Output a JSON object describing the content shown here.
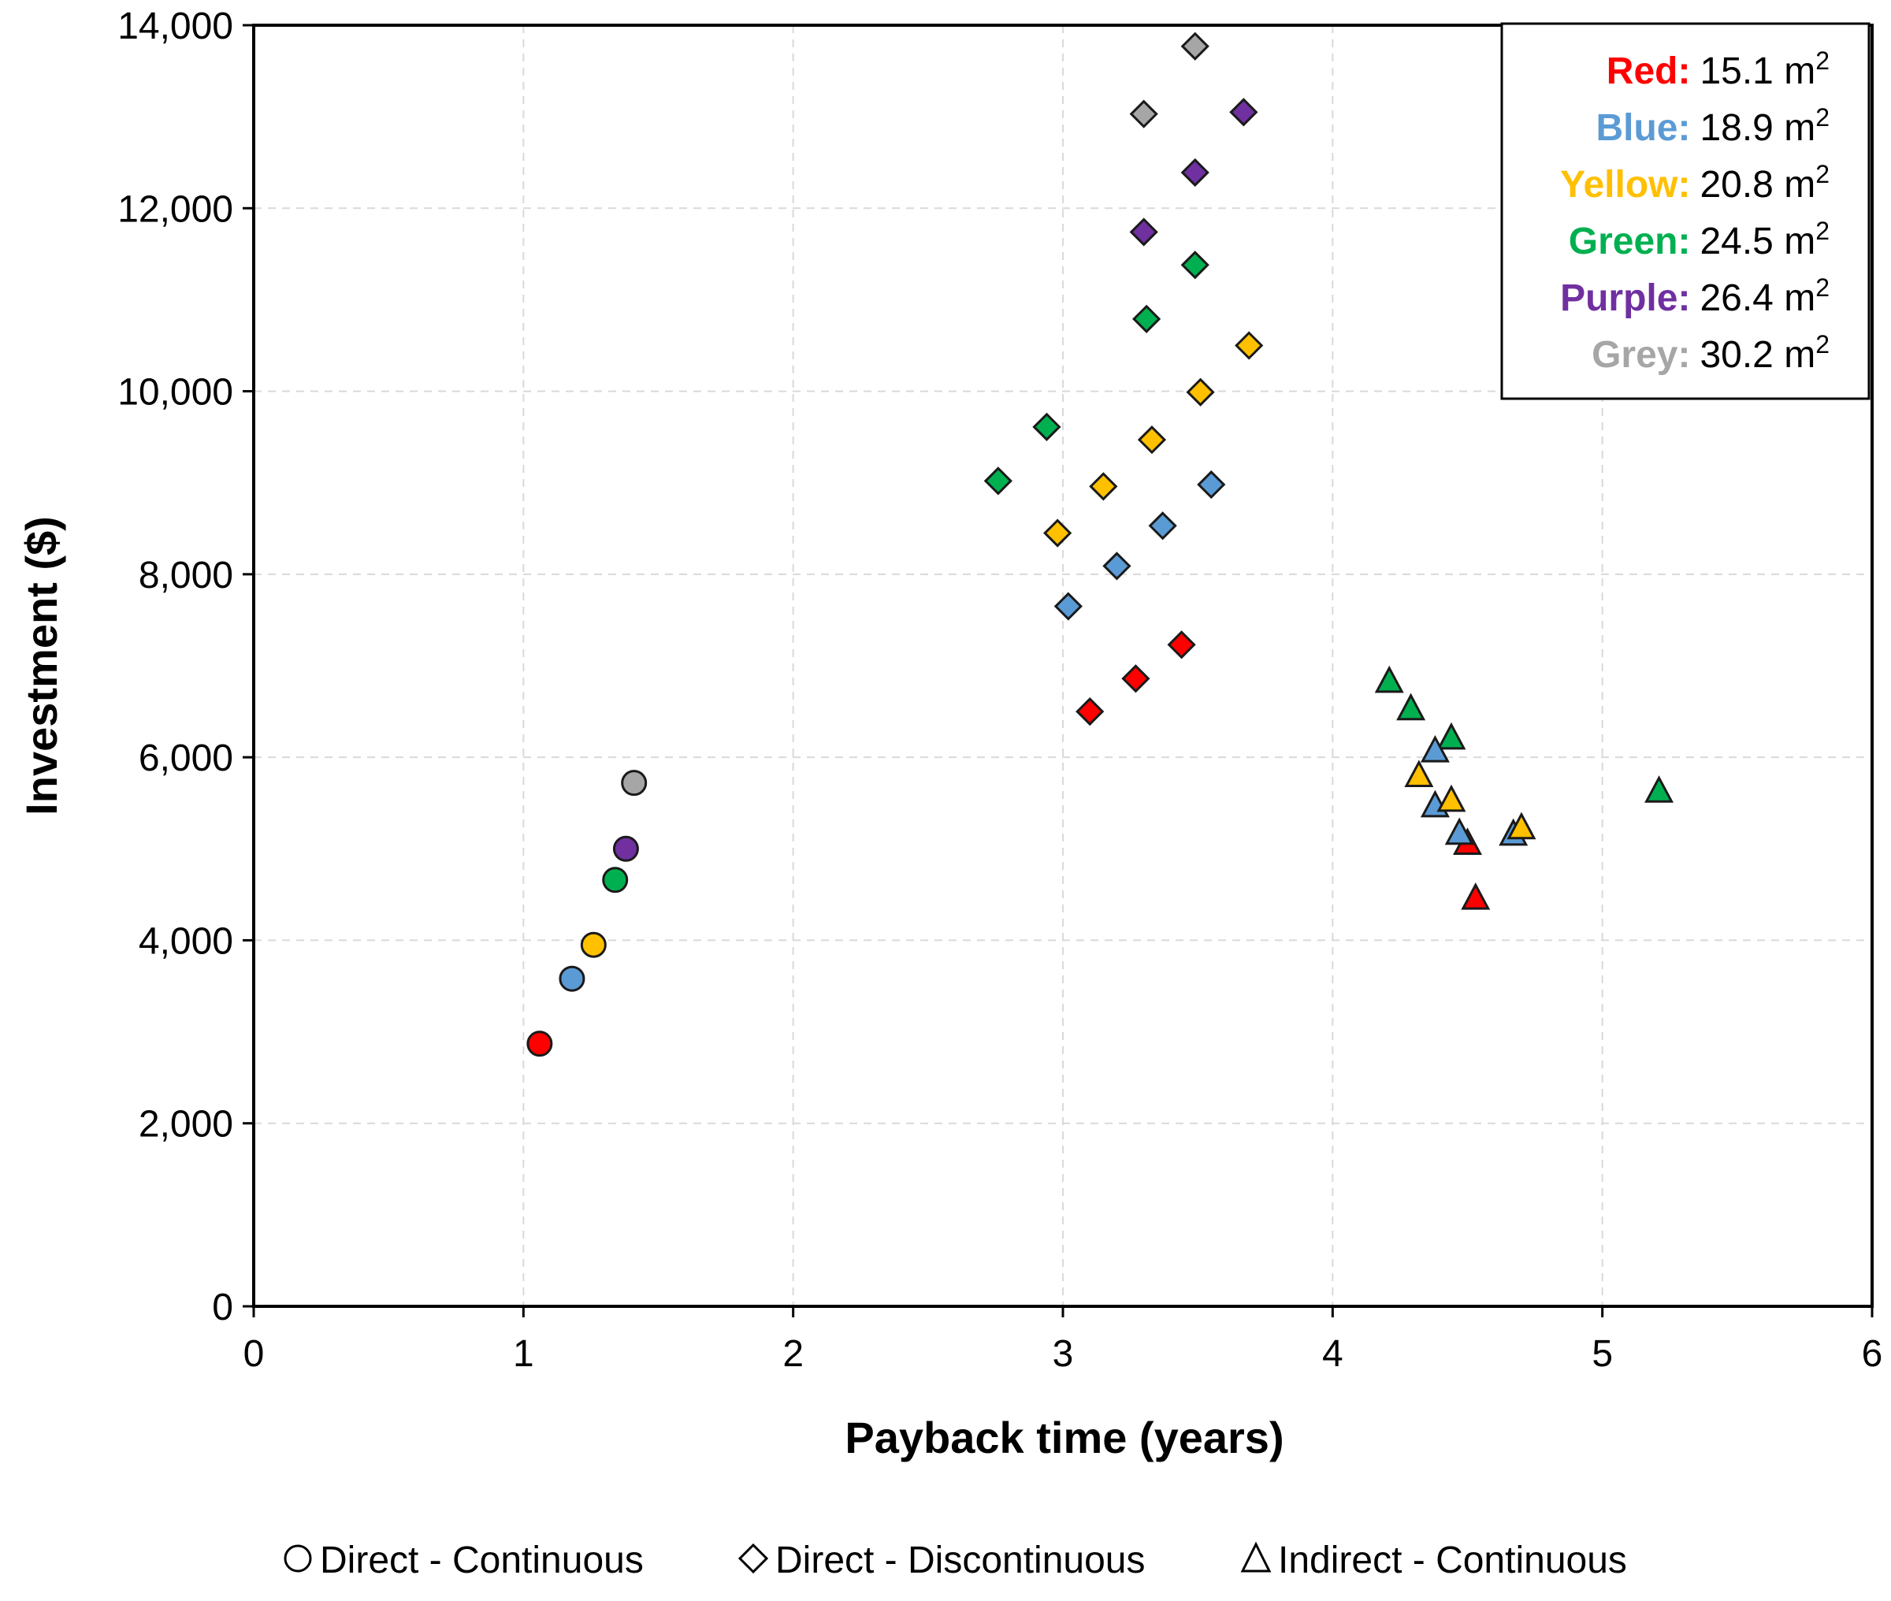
{
  "chart_data": {
    "type": "scatter",
    "title": "",
    "xlabel": "Payback time (years)",
    "ylabel": "Investment ($)",
    "xlim": [
      0,
      6
    ],
    "ylim": [
      0,
      14000
    ],
    "x_ticks": [
      "0",
      "1",
      "2",
      "3",
      "4",
      "5",
      "6"
    ],
    "y_ticks": [
      "0",
      "2,000",
      "4,000",
      "6,000",
      "8,000",
      "10,000",
      "12,000",
      "14,000"
    ],
    "grid": true,
    "colors": {
      "red": "#ff0000",
      "blue": "#5b9bd5",
      "yellow": "#ffc000",
      "green": "#00b050",
      "purple": "#7030a0",
      "grey": "#a6a6a6"
    },
    "color_legend": {
      "position": "top-right",
      "entries": [
        {
          "key": "red",
          "name": "Red:",
          "value": "15.1",
          "unit": "m",
          "sup": "2"
        },
        {
          "key": "blue",
          "name": "Blue:",
          "value": "18.9",
          "unit": "m",
          "sup": "2"
        },
        {
          "key": "yellow",
          "name": "Yellow:",
          "value": "20.8",
          "unit": "m",
          "sup": "2"
        },
        {
          "key": "green",
          "name": "Green:",
          "value": "24.5",
          "unit": "m",
          "sup": "2"
        },
        {
          "key": "purple",
          "name": "Purple:",
          "value": "26.4",
          "unit": "m",
          "sup": "2"
        },
        {
          "key": "grey",
          "name": "Grey:",
          "value": "30.2",
          "unit": "m",
          "sup": "2"
        }
      ]
    },
    "shape_legend": {
      "position": "bottom",
      "entries": [
        {
          "marker": "circle",
          "label": "Direct - Continuous"
        },
        {
          "marker": "diamond",
          "label": "Direct - Discontinuous"
        },
        {
          "marker": "triangle",
          "label": "Indirect - Continuous"
        }
      ]
    },
    "series": [
      {
        "name": "Direct - Continuous",
        "marker": "circle",
        "points": [
          {
            "color": "red",
            "x": 1.06,
            "y": 2870
          },
          {
            "color": "blue",
            "x": 1.18,
            "y": 3580
          },
          {
            "color": "yellow",
            "x": 1.26,
            "y": 3950
          },
          {
            "color": "green",
            "x": 1.34,
            "y": 4660
          },
          {
            "color": "purple",
            "x": 1.38,
            "y": 5000
          },
          {
            "color": "grey",
            "x": 1.41,
            "y": 5720
          }
        ]
      },
      {
        "name": "Direct - Discontinuous",
        "marker": "diamond",
        "points": [
          {
            "color": "red",
            "x": 3.1,
            "y": 6500
          },
          {
            "color": "red",
            "x": 3.27,
            "y": 6860
          },
          {
            "color": "red",
            "x": 3.44,
            "y": 7230
          },
          {
            "color": "blue",
            "x": 3.02,
            "y": 7650
          },
          {
            "color": "blue",
            "x": 3.2,
            "y": 8090
          },
          {
            "color": "blue",
            "x": 3.37,
            "y": 8530
          },
          {
            "color": "blue",
            "x": 3.55,
            "y": 8980
          },
          {
            "color": "yellow",
            "x": 2.98,
            "y": 8450
          },
          {
            "color": "yellow",
            "x": 3.15,
            "y": 8960
          },
          {
            "color": "yellow",
            "x": 3.33,
            "y": 9470
          },
          {
            "color": "yellow",
            "x": 3.51,
            "y": 9990
          },
          {
            "color": "yellow",
            "x": 3.69,
            "y": 10500
          },
          {
            "color": "green",
            "x": 2.76,
            "y": 9020
          },
          {
            "color": "green",
            "x": 2.94,
            "y": 9610
          },
          {
            "color": "green",
            "x": 3.31,
            "y": 10790
          },
          {
            "color": "green",
            "x": 3.49,
            "y": 11380
          },
          {
            "color": "purple",
            "x": 3.3,
            "y": 11740
          },
          {
            "color": "purple",
            "x": 3.49,
            "y": 12390
          },
          {
            "color": "purple",
            "x": 3.67,
            "y": 13050
          },
          {
            "color": "grey",
            "x": 3.3,
            "y": 13030
          },
          {
            "color": "grey",
            "x": 3.49,
            "y": 13770
          }
        ]
      },
      {
        "name": "Indirect - Continuous",
        "marker": "triangle",
        "points": [
          {
            "color": "red",
            "x": 4.5,
            "y": 5050
          },
          {
            "color": "red",
            "x": 4.53,
            "y": 4450
          },
          {
            "color": "green",
            "x": 4.21,
            "y": 6820
          },
          {
            "color": "green",
            "x": 4.29,
            "y": 6520
          },
          {
            "color": "green",
            "x": 4.44,
            "y": 6200
          },
          {
            "color": "green",
            "x": 5.21,
            "y": 5620
          },
          {
            "color": "blue",
            "x": 4.38,
            "y": 6060
          },
          {
            "color": "blue",
            "x": 4.38,
            "y": 5460
          },
          {
            "color": "blue",
            "x": 4.47,
            "y": 5160
          },
          {
            "color": "blue",
            "x": 4.67,
            "y": 5150
          },
          {
            "color": "yellow",
            "x": 4.32,
            "y": 5790
          },
          {
            "color": "yellow",
            "x": 4.44,
            "y": 5520
          },
          {
            "color": "yellow",
            "x": 4.7,
            "y": 5220
          }
        ]
      }
    ]
  }
}
